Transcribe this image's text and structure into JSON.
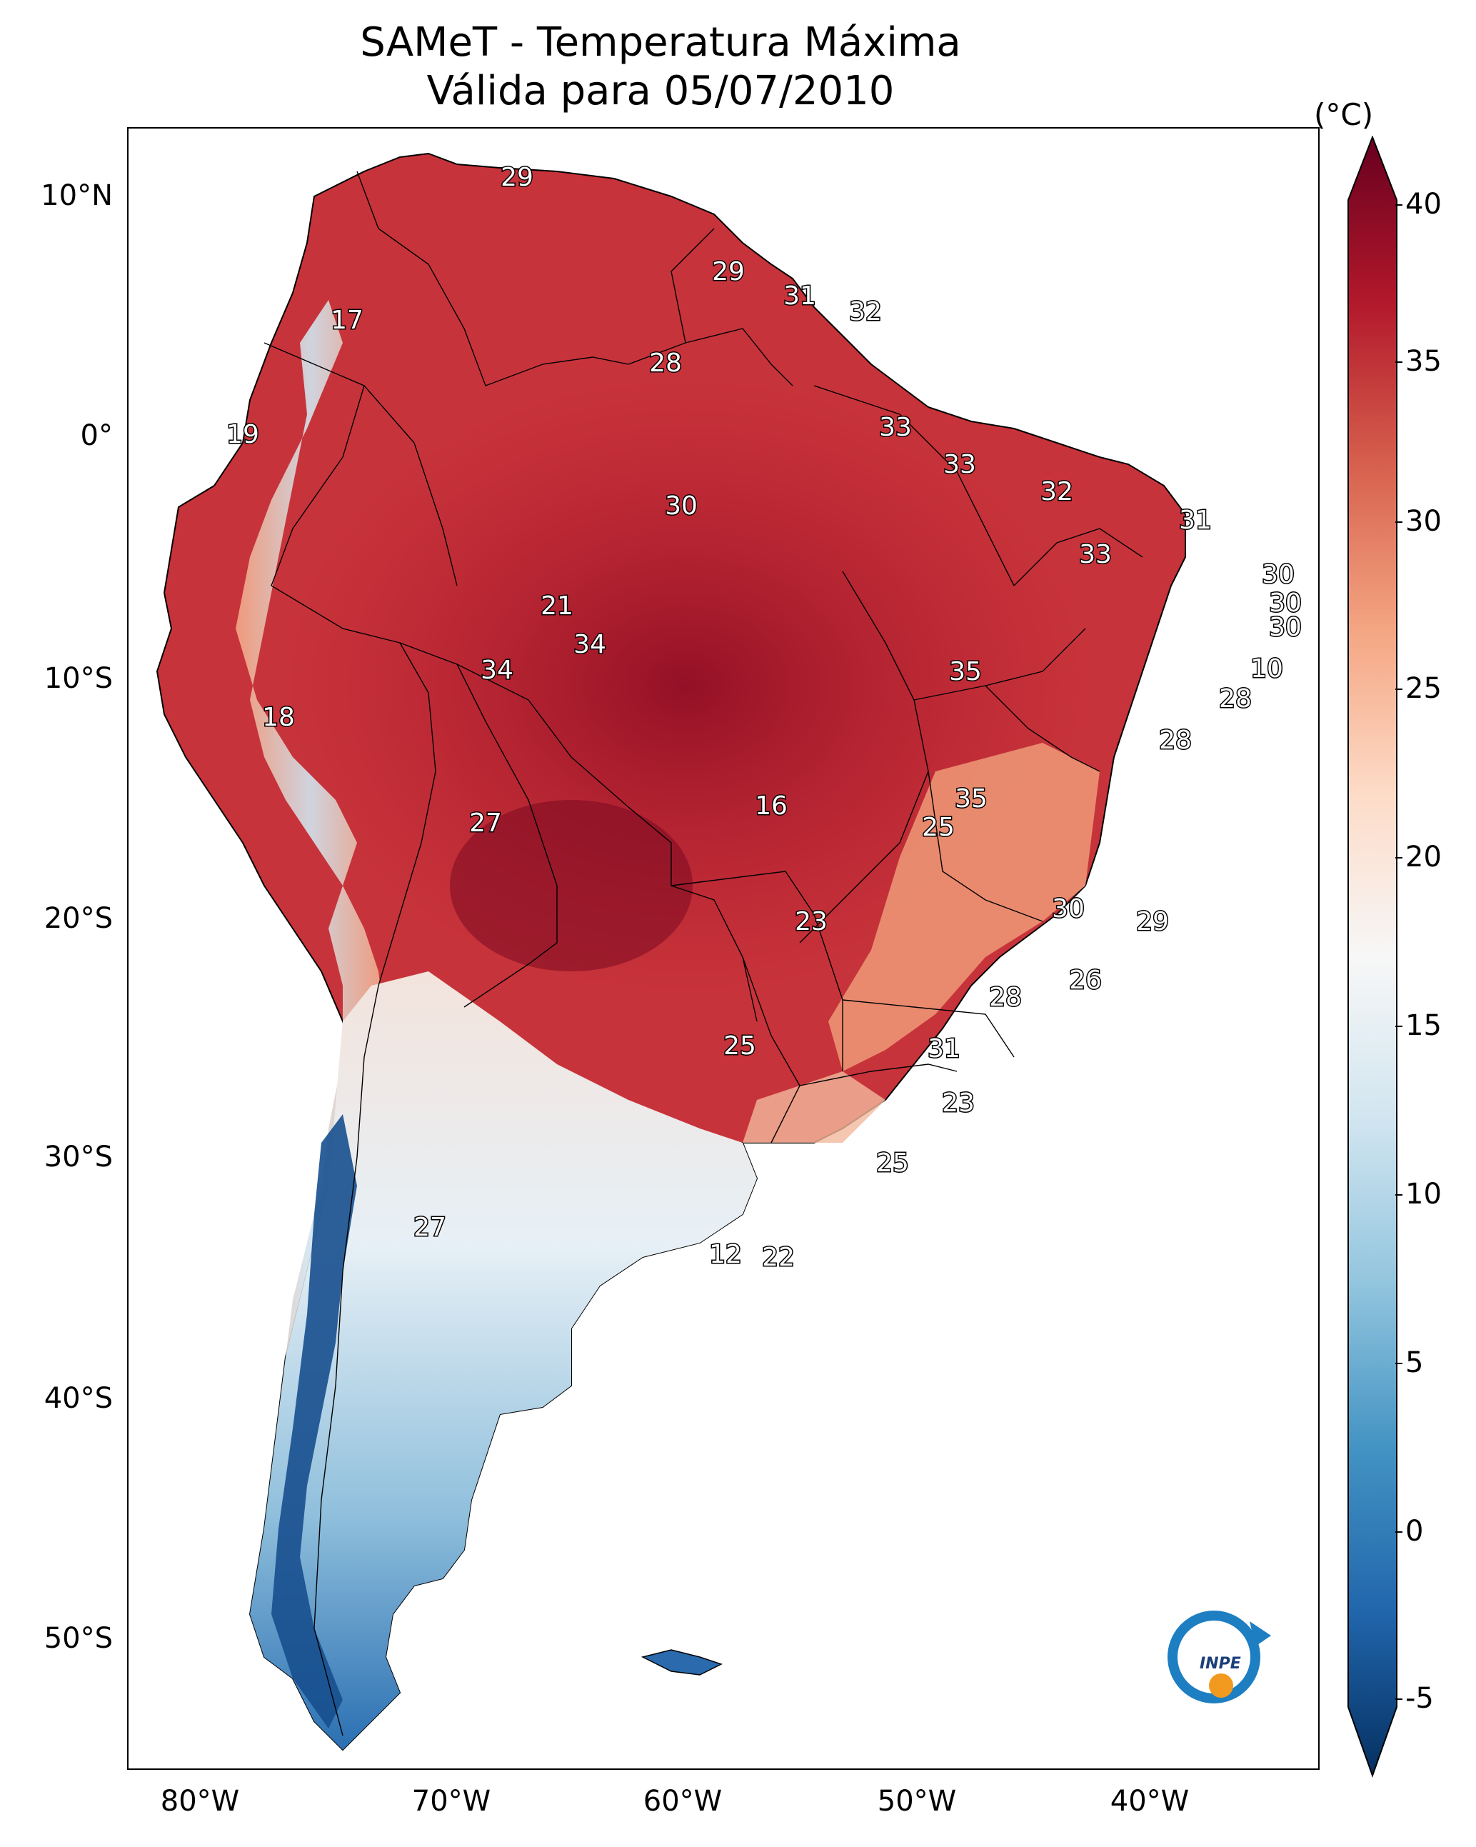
{
  "title": {
    "line1": "SAMeT - Temperatura Máxima",
    "line2": "Válida para 05/07/2010"
  },
  "axes": {
    "lat_labels": [
      "10°N",
      "0°",
      "10°S",
      "20°S",
      "30°S",
      "40°S",
      "50°S"
    ],
    "lon_labels": [
      "80°W",
      "70°W",
      "60°W",
      "50°W",
      "40°W"
    ]
  },
  "colorbar": {
    "unit": "(°C)",
    "ticks": [
      "40",
      "35",
      "30",
      "25",
      "20",
      "15",
      "10",
      "5",
      "0",
      "-5"
    ],
    "min": -7,
    "max": 40,
    "colors": [
      "#053061",
      "#2166ac",
      "#4393c3",
      "#92c5de",
      "#d1e5f0",
      "#f7f7f7",
      "#fddbc7",
      "#f4a582",
      "#d6604d",
      "#b2182b",
      "#67001f"
    ]
  },
  "labels": {
    "logo": "INPE",
    "temps": [
      "29",
      "29",
      "31",
      "32",
      "17",
      "28",
      "19",
      "33",
      "33",
      "30",
      "32",
      "31",
      "33",
      "30",
      "30",
      "30",
      "34",
      "34",
      "35",
      "10",
      "18",
      "28",
      "28",
      "27",
      "16",
      "35",
      "25",
      "30",
      "23",
      "29",
      "26",
      "28",
      "25",
      "31",
      "23",
      "25",
      "27",
      "12",
      "22",
      "21"
    ]
  }
}
